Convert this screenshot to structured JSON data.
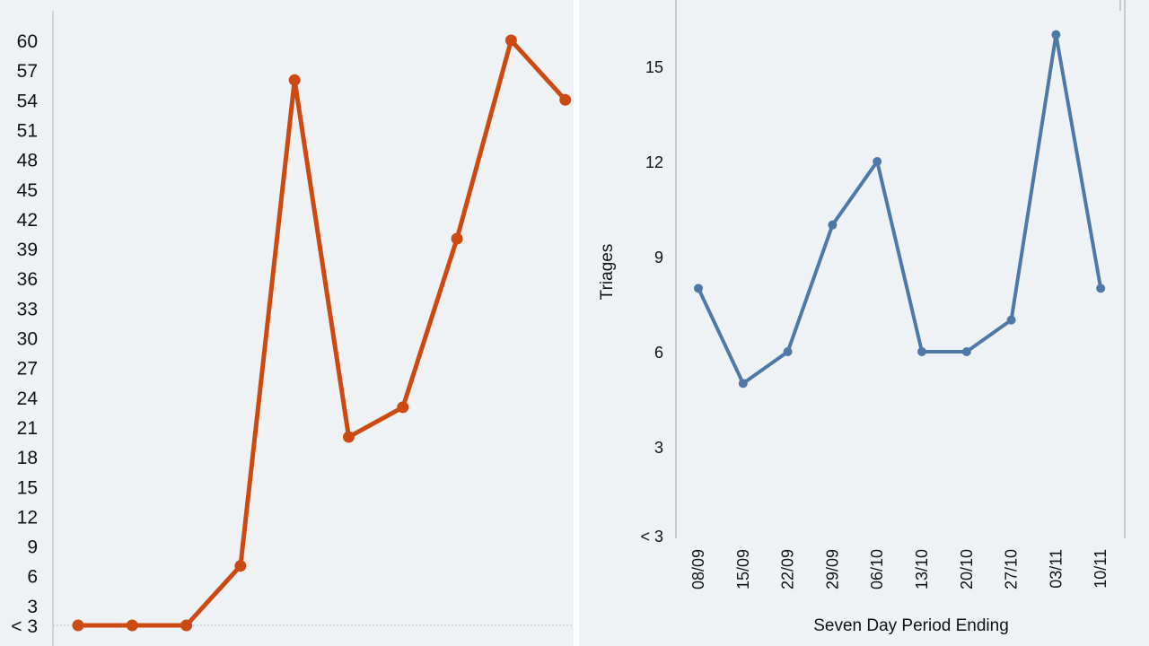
{
  "chart_data": [
    {
      "type": "line",
      "series": [
        {
          "color": "#cc4a12",
          "values": [
            1,
            1,
            1,
            7,
            56,
            20,
            23,
            40,
            60,
            54
          ]
        }
      ],
      "ylim": [
        1,
        60
      ],
      "yticks": [
        {
          "value": 1,
          "label": "< 3"
        },
        {
          "value": 3,
          "label": "3"
        },
        {
          "value": 6,
          "label": "6"
        },
        {
          "value": 9,
          "label": "9"
        },
        {
          "value": 12,
          "label": "12"
        },
        {
          "value": 15,
          "label": "15"
        },
        {
          "value": 18,
          "label": "18"
        },
        {
          "value": 21,
          "label": "21"
        },
        {
          "value": 24,
          "label": "24"
        },
        {
          "value": 27,
          "label": "27"
        },
        {
          "value": 30,
          "label": "30"
        },
        {
          "value": 33,
          "label": "33"
        },
        {
          "value": 36,
          "label": "36"
        },
        {
          "value": 39,
          "label": "39"
        },
        {
          "value": 42,
          "label": "42"
        },
        {
          "value": 45,
          "label": "45"
        },
        {
          "value": 48,
          "label": "48"
        },
        {
          "value": 51,
          "label": "51"
        },
        {
          "value": 54,
          "label": "54"
        },
        {
          "value": 57,
          "label": "57"
        },
        {
          "value": 60,
          "label": "60"
        }
      ],
      "baseline_line": true,
      "grid": false
    },
    {
      "type": "line",
      "categories": [
        "08/09",
        "15/09",
        "22/09",
        "29/09",
        "06/10",
        "13/10",
        "20/10",
        "27/10",
        "03/11",
        "10/11"
      ],
      "series": [
        {
          "color": "#4e79a7",
          "values": [
            8,
            5,
            6,
            10,
            12,
            6,
            6,
            7,
            16,
            8
          ]
        }
      ],
      "ylim": [
        0.2,
        16.9
      ],
      "yticks": [
        {
          "value": 0.2,
          "label": "< 3"
        },
        {
          "value": 3,
          "label": "3"
        },
        {
          "value": 6,
          "label": "6"
        },
        {
          "value": 9,
          "label": "9"
        },
        {
          "value": 12,
          "label": "12"
        },
        {
          "value": 15,
          "label": "15"
        }
      ],
      "ylabel": "Triages",
      "xlabel": "Seven Day Period Ending",
      "grid": false
    }
  ]
}
